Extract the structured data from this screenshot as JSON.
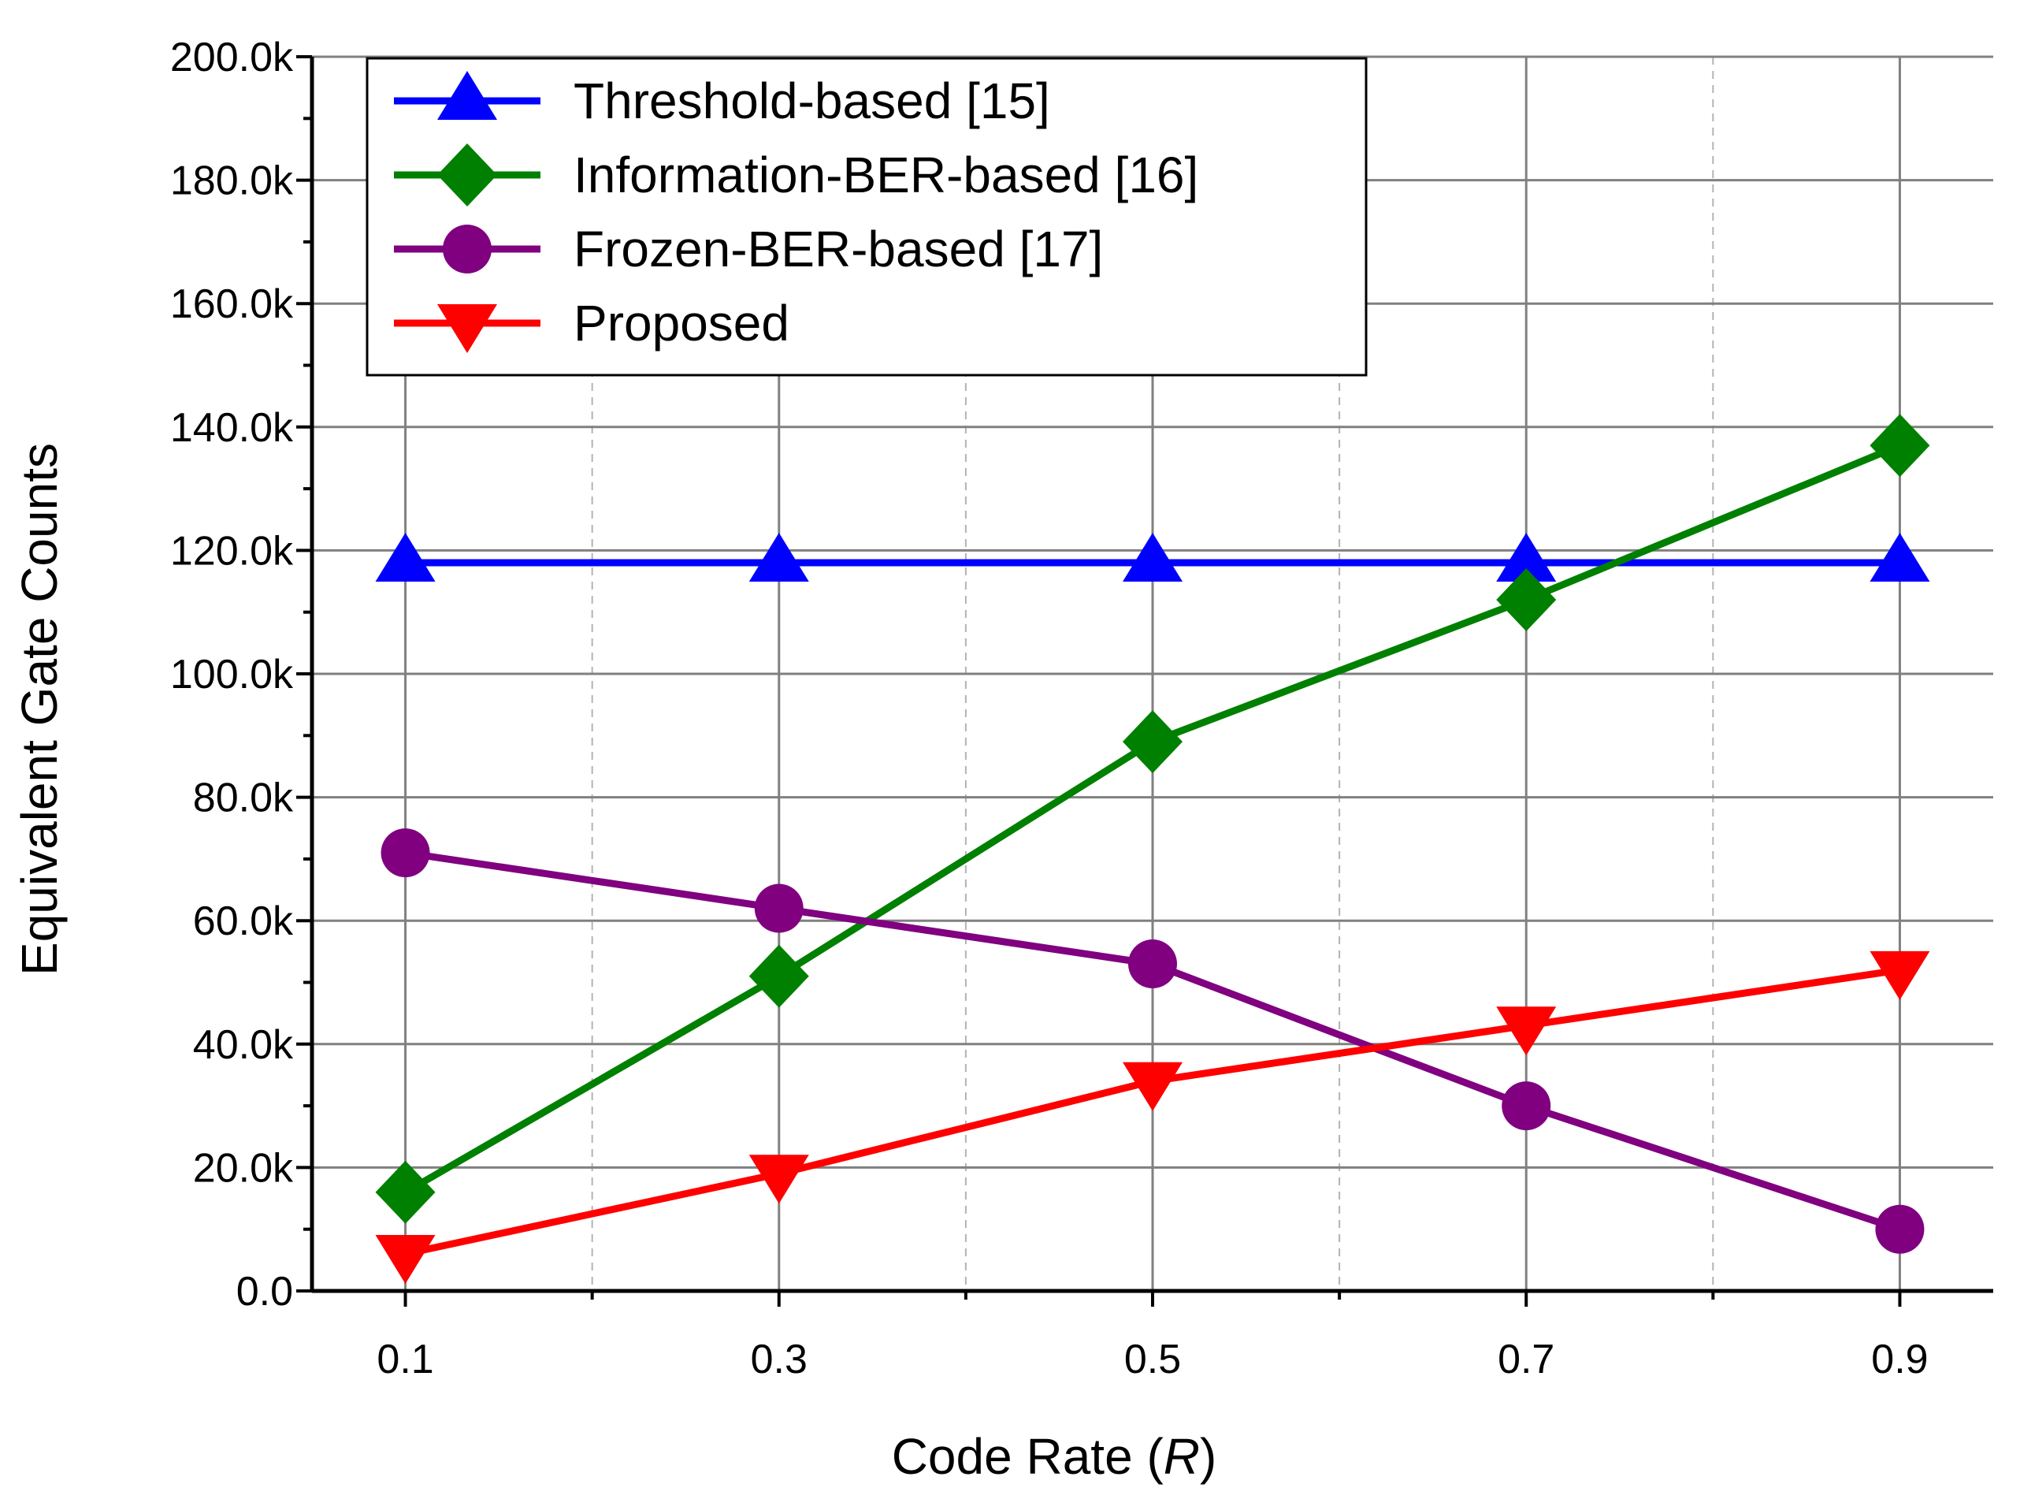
{
  "chart_data": {
    "type": "line",
    "title": "",
    "xlabel_main": "Code Rate (",
    "xlabel_var": "R",
    "xlabel_close": ")",
    "ylabel": "Equivalent Gate Counts",
    "x": [
      0.1,
      0.3,
      0.5,
      0.7,
      0.9
    ],
    "x_tick_labels": [
      "0.1",
      "0.3",
      "0.5",
      "0.7",
      "0.9"
    ],
    "xlim": [
      0.05,
      0.95
    ],
    "ylim": [
      0,
      200000
    ],
    "y_tick_labels": [
      "0.0",
      "20.0k",
      "40.0k",
      "60.0k",
      "80.0k",
      "100.0k",
      "120.0k",
      "140.0k",
      "160.0k",
      "180.0k",
      "200.0k"
    ],
    "y_tick_values": [
      0,
      20000,
      40000,
      60000,
      80000,
      100000,
      120000,
      140000,
      160000,
      180000,
      200000
    ],
    "grid": true,
    "legend_position": "top-left",
    "series": [
      {
        "name": "Threshold-based [15]",
        "color": "#0000ff",
        "marker": "triangle-up",
        "values": [
          118000,
          118000,
          118000,
          118000,
          118000
        ]
      },
      {
        "name": "Information-BER-based [16]",
        "color": "#008000",
        "marker": "diamond",
        "values": [
          16000,
          51000,
          89000,
          112000,
          137000
        ]
      },
      {
        "name": "Frozen-BER-based [17]",
        "color": "#800080",
        "marker": "circle",
        "values": [
          71000,
          62000,
          53000,
          30000,
          10000
        ]
      },
      {
        "name": "Proposed",
        "color": "#ff0000",
        "marker": "triangle-down",
        "values": [
          6000,
          19000,
          34000,
          43000,
          52000
        ]
      }
    ]
  }
}
